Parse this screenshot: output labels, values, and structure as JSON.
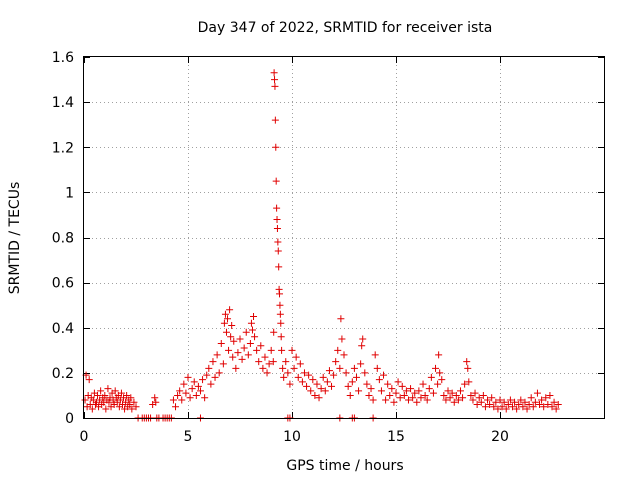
{
  "chart_data": {
    "type": "scatter",
    "title": "Day 347 of 2022, SRMTID for receiver ista",
    "xlabel": "GPS time / hours",
    "ylabel": "SRMTID / TECUs",
    "xlim": [
      0,
      25
    ],
    "ylim": [
      0,
      1.6
    ],
    "xticks": [
      0,
      5,
      10,
      15,
      20
    ],
    "xtick_labels": [
      "0",
      "5",
      "10",
      "15",
      "20"
    ],
    "yticks": [
      0,
      0.2,
      0.4,
      0.6,
      0.8,
      1.0,
      1.2,
      1.4,
      1.6
    ],
    "ytick_labels": [
      "0",
      "0.2",
      "0.4",
      "0.6",
      "0.8",
      "1",
      "1.2",
      "1.4",
      "1.6"
    ],
    "grid": true,
    "marker": "+",
    "color": "#e00000",
    "series": [
      {
        "name": "SRMTID",
        "points": [
          [
            0.05,
            0.08
          ],
          [
            0.1,
            0.19
          ],
          [
            0.15,
            0.05
          ],
          [
            0.2,
            0.1
          ],
          [
            0.25,
            0.17
          ],
          [
            0.3,
            0.06
          ],
          [
            0.35,
            0.09
          ],
          [
            0.4,
            0.04
          ],
          [
            0.45,
            0.08
          ],
          [
            0.5,
            0.11
          ],
          [
            0.55,
            0.06
          ],
          [
            0.6,
            0.07
          ],
          [
            0.65,
            0.1
          ],
          [
            0.7,
            0.05
          ],
          [
            0.75,
            0.08
          ],
          [
            0.8,
            0.12
          ],
          [
            0.85,
            0.06
          ],
          [
            0.9,
            0.09
          ],
          [
            0.95,
            0.07
          ],
          [
            1.0,
            0.1
          ],
          [
            1.05,
            0.04
          ],
          [
            1.1,
            0.08
          ],
          [
            1.15,
            0.13
          ],
          [
            1.2,
            0.07
          ],
          [
            1.25,
            0.09
          ],
          [
            1.3,
            0.05
          ],
          [
            1.35,
            0.11
          ],
          [
            1.4,
            0.08
          ],
          [
            1.45,
            0.06
          ],
          [
            1.5,
            0.12
          ],
          [
            1.55,
            0.09
          ],
          [
            1.6,
            0.07
          ],
          [
            1.65,
            0.1
          ],
          [
            1.7,
            0.05
          ],
          [
            1.75,
            0.08
          ],
          [
            1.8,
            0.11
          ],
          [
            1.85,
            0.06
          ],
          [
            1.9,
            0.09
          ],
          [
            1.95,
            0.04
          ],
          [
            2.0,
            0.07
          ],
          [
            2.05,
            0.1
          ],
          [
            2.1,
            0.05
          ],
          [
            2.15,
            0.08
          ],
          [
            2.2,
            0.06
          ],
          [
            2.25,
            0.09
          ],
          [
            2.3,
            0.04
          ],
          [
            2.4,
            0.07
          ],
          [
            2.5,
            0.05
          ],
          [
            2.6,
            0.0
          ],
          [
            2.8,
            0.0
          ],
          [
            2.9,
            0.0
          ],
          [
            3.0,
            0.0
          ],
          [
            3.1,
            0.0
          ],
          [
            3.2,
            0.0
          ],
          [
            3.5,
            0.0
          ],
          [
            3.6,
            0.0
          ],
          [
            3.8,
            0.0
          ],
          [
            3.9,
            0.0
          ],
          [
            4.0,
            0.0
          ],
          [
            4.1,
            0.0
          ],
          [
            4.2,
            0.0
          ],
          [
            5.6,
            0.0
          ],
          [
            9.8,
            0.0
          ],
          [
            9.9,
            0.0
          ],
          [
            12.3,
            0.0
          ],
          [
            12.9,
            0.0
          ],
          [
            13.0,
            0.0
          ],
          [
            13.9,
            0.0
          ],
          [
            3.3,
            0.06
          ],
          [
            3.4,
            0.09
          ],
          [
            3.45,
            0.07
          ],
          [
            4.3,
            0.08
          ],
          [
            4.4,
            0.05
          ],
          [
            4.5,
            0.1
          ],
          [
            4.6,
            0.12
          ],
          [
            4.7,
            0.08
          ],
          [
            4.8,
            0.15
          ],
          [
            4.9,
            0.11
          ],
          [
            5.0,
            0.18
          ],
          [
            5.1,
            0.09
          ],
          [
            5.2,
            0.13
          ],
          [
            5.3,
            0.16
          ],
          [
            5.4,
            0.1
          ],
          [
            5.5,
            0.14
          ],
          [
            5.6,
            0.12
          ],
          [
            5.7,
            0.17
          ],
          [
            5.8,
            0.09
          ],
          [
            5.9,
            0.19
          ],
          [
            6.0,
            0.22
          ],
          [
            6.1,
            0.15
          ],
          [
            6.2,
            0.25
          ],
          [
            6.3,
            0.18
          ],
          [
            6.4,
            0.28
          ],
          [
            6.5,
            0.2
          ],
          [
            6.6,
            0.33
          ],
          [
            6.7,
            0.24
          ],
          [
            6.75,
            0.42
          ],
          [
            6.8,
            0.46
          ],
          [
            6.85,
            0.38
          ],
          [
            6.9,
            0.44
          ],
          [
            6.95,
            0.3
          ],
          [
            7.0,
            0.48
          ],
          [
            7.05,
            0.36
          ],
          [
            7.1,
            0.41
          ],
          [
            7.15,
            0.27
          ],
          [
            7.2,
            0.34
          ],
          [
            7.3,
            0.22
          ],
          [
            7.4,
            0.29
          ],
          [
            7.5,
            0.35
          ],
          [
            7.6,
            0.26
          ],
          [
            7.7,
            0.31
          ],
          [
            7.8,
            0.38
          ],
          [
            7.9,
            0.28
          ],
          [
            8.0,
            0.33
          ],
          [
            8.05,
            0.42
          ],
          [
            8.1,
            0.39
          ],
          [
            8.15,
            0.45
          ],
          [
            8.2,
            0.36
          ],
          [
            8.3,
            0.3
          ],
          [
            8.4,
            0.25
          ],
          [
            8.5,
            0.32
          ],
          [
            8.6,
            0.22
          ],
          [
            8.7,
            0.27
          ],
          [
            8.8,
            0.2
          ],
          [
            8.9,
            0.24
          ],
          [
            9.0,
            0.3
          ],
          [
            9.1,
            0.25
          ],
          [
            9.12,
            0.38
          ],
          [
            9.14,
            1.53
          ],
          [
            9.16,
            1.5
          ],
          [
            9.18,
            1.47
          ],
          [
            9.2,
            1.32
          ],
          [
            9.22,
            1.2
          ],
          [
            9.24,
            1.05
          ],
          [
            9.26,
            0.93
          ],
          [
            9.28,
            0.88
          ],
          [
            9.3,
            0.84
          ],
          [
            9.32,
            0.78
          ],
          [
            9.34,
            0.74
          ],
          [
            9.36,
            0.67
          ],
          [
            9.38,
            0.57
          ],
          [
            9.4,
            0.55
          ],
          [
            9.42,
            0.5
          ],
          [
            9.44,
            0.46
          ],
          [
            9.46,
            0.42
          ],
          [
            9.48,
            0.36
          ],
          [
            9.5,
            0.3
          ],
          [
            9.55,
            0.22
          ],
          [
            9.6,
            0.18
          ],
          [
            9.7,
            0.25
          ],
          [
            9.8,
            0.2
          ],
          [
            9.9,
            0.15
          ],
          [
            10.0,
            0.3
          ],
          [
            10.1,
            0.22
          ],
          [
            10.2,
            0.27
          ],
          [
            10.3,
            0.18
          ],
          [
            10.4,
            0.24
          ],
          [
            10.5,
            0.16
          ],
          [
            10.6,
            0.2
          ],
          [
            10.7,
            0.14
          ],
          [
            10.8,
            0.19
          ],
          [
            10.9,
            0.12
          ],
          [
            11.0,
            0.17
          ],
          [
            11.1,
            0.1
          ],
          [
            11.2,
            0.15
          ],
          [
            11.3,
            0.09
          ],
          [
            11.4,
            0.13
          ],
          [
            11.5,
            0.18
          ],
          [
            11.6,
            0.12
          ],
          [
            11.7,
            0.16
          ],
          [
            11.8,
            0.21
          ],
          [
            11.9,
            0.14
          ],
          [
            12.0,
            0.19
          ],
          [
            12.1,
            0.25
          ],
          [
            12.2,
            0.3
          ],
          [
            12.3,
            0.22
          ],
          [
            12.35,
            0.44
          ],
          [
            12.4,
            0.35
          ],
          [
            12.5,
            0.28
          ],
          [
            12.6,
            0.2
          ],
          [
            12.7,
            0.14
          ],
          [
            12.8,
            0.1
          ],
          [
            12.9,
            0.16
          ],
          [
            13.0,
            0.22
          ],
          [
            13.1,
            0.18
          ],
          [
            13.2,
            0.12
          ],
          [
            13.3,
            0.24
          ],
          [
            13.35,
            0.32
          ],
          [
            13.4,
            0.35
          ],
          [
            13.5,
            0.2
          ],
          [
            13.6,
            0.15
          ],
          [
            13.7,
            0.1
          ],
          [
            13.8,
            0.13
          ],
          [
            13.9,
            0.08
          ],
          [
            14.0,
            0.28
          ],
          [
            14.1,
            0.22
          ],
          [
            14.2,
            0.17
          ],
          [
            14.3,
            0.12
          ],
          [
            14.4,
            0.19
          ],
          [
            14.5,
            0.08
          ],
          [
            14.6,
            0.15
          ],
          [
            14.7,
            0.1
          ],
          [
            14.8,
            0.13
          ],
          [
            14.9,
            0.07
          ],
          [
            15.0,
            0.11
          ],
          [
            15.1,
            0.16
          ],
          [
            15.2,
            0.09
          ],
          [
            15.3,
            0.14
          ],
          [
            15.4,
            0.1
          ],
          [
            15.5,
            0.12
          ],
          [
            15.6,
            0.08
          ],
          [
            15.7,
            0.13
          ],
          [
            15.8,
            0.09
          ],
          [
            15.9,
            0.11
          ],
          [
            16.0,
            0.07
          ],
          [
            16.1,
            0.12
          ],
          [
            16.2,
            0.09
          ],
          [
            16.3,
            0.15
          ],
          [
            16.4,
            0.1
          ],
          [
            16.5,
            0.08
          ],
          [
            16.6,
            0.13
          ],
          [
            16.7,
            0.18
          ],
          [
            16.8,
            0.11
          ],
          [
            16.9,
            0.22
          ],
          [
            17.0,
            0.15
          ],
          [
            17.05,
            0.28
          ],
          [
            17.1,
            0.2
          ],
          [
            17.2,
            0.17
          ],
          [
            17.3,
            0.1
          ],
          [
            17.4,
            0.08
          ],
          [
            17.5,
            0.12
          ],
          [
            17.6,
            0.09
          ],
          [
            17.7,
            0.11
          ],
          [
            17.8,
            0.07
          ],
          [
            17.9,
            0.1
          ],
          [
            18.0,
            0.08
          ],
          [
            18.1,
            0.12
          ],
          [
            18.2,
            0.09
          ],
          [
            18.3,
            0.15
          ],
          [
            18.4,
            0.25
          ],
          [
            18.45,
            0.22
          ],
          [
            18.5,
            0.16
          ],
          [
            18.6,
            0.1
          ],
          [
            18.7,
            0.08
          ],
          [
            18.8,
            0.11
          ],
          [
            18.9,
            0.06
          ],
          [
            19.0,
            0.09
          ],
          [
            19.1,
            0.07
          ],
          [
            19.2,
            0.1
          ],
          [
            19.3,
            0.05
          ],
          [
            19.4,
            0.08
          ],
          [
            19.5,
            0.06
          ],
          [
            19.6,
            0.09
          ],
          [
            19.7,
            0.05
          ],
          [
            19.8,
            0.07
          ],
          [
            19.9,
            0.04
          ],
          [
            20.0,
            0.08
          ],
          [
            20.1,
            0.05
          ],
          [
            20.2,
            0.07
          ],
          [
            20.3,
            0.04
          ],
          [
            20.4,
            0.06
          ],
          [
            20.5,
            0.08
          ],
          [
            20.6,
            0.05
          ],
          [
            20.7,
            0.07
          ],
          [
            20.8,
            0.04
          ],
          [
            20.9,
            0.06
          ],
          [
            21.0,
            0.08
          ],
          [
            21.1,
            0.05
          ],
          [
            21.2,
            0.07
          ],
          [
            21.3,
            0.04
          ],
          [
            21.4,
            0.06
          ],
          [
            21.5,
            0.09
          ],
          [
            21.6,
            0.05
          ],
          [
            21.7,
            0.07
          ],
          [
            21.8,
            0.11
          ],
          [
            21.9,
            0.06
          ],
          [
            22.0,
            0.08
          ],
          [
            22.1,
            0.05
          ],
          [
            22.2,
            0.09
          ],
          [
            22.3,
            0.06
          ],
          [
            22.4,
            0.1
          ],
          [
            22.5,
            0.05
          ],
          [
            22.6,
            0.07
          ],
          [
            22.7,
            0.04
          ],
          [
            22.8,
            0.06
          ]
        ]
      }
    ]
  }
}
